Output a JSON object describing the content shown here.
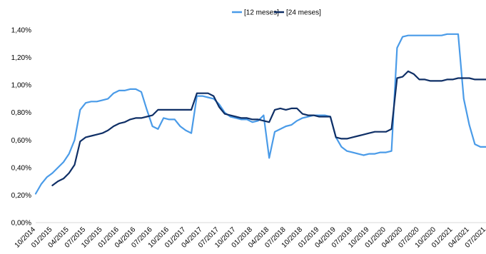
{
  "chart_data": {
    "type": "line",
    "title": "",
    "xlabel": "",
    "ylabel": "",
    "ylim": [
      0,
      1.4
    ],
    "yticks": [
      0,
      0.2,
      0.4,
      0.6,
      0.8,
      1.0,
      1.2,
      1.4
    ],
    "ytick_labels": [
      "0,00%",
      "0,20%",
      "0,40%",
      "0,60%",
      "0,80%",
      "1,00%",
      "1,20%",
      "1,40%"
    ],
    "xlim": [
      "2014-10",
      "2021-07"
    ],
    "xtick_labels": [
      "10/2014",
      "01/2015",
      "04/2015",
      "07/2015",
      "10/2015",
      "01/2016",
      "04/2016",
      "07/2016",
      "10/2016",
      "01/2017",
      "04/2017",
      "07/2017",
      "10/2017",
      "01/2018",
      "04/2018",
      "07/2018",
      "10/2018",
      "01/2019",
      "04/2019",
      "07/2019",
      "10/2019",
      "01/2020",
      "04/2020",
      "07/2020",
      "10/2020",
      "01/2021",
      "04/2021",
      "07/2021"
    ],
    "grid": false,
    "legend_position": "top",
    "series": [
      {
        "name": "[12 meses]",
        "color": "#4a9be8",
        "points": [
          [
            "2014-10",
            0.21
          ],
          [
            "2014-11",
            0.28
          ],
          [
            "2014-12",
            0.33
          ],
          [
            "2015-01",
            0.36
          ],
          [
            "2015-02",
            0.4
          ],
          [
            "2015-03",
            0.44
          ],
          [
            "2015-04",
            0.5
          ],
          [
            "2015-05",
            0.6
          ],
          [
            "2015-06",
            0.82
          ],
          [
            "2015-07",
            0.87
          ],
          [
            "2015-08",
            0.88
          ],
          [
            "2015-09",
            0.88
          ],
          [
            "2015-10",
            0.89
          ],
          [
            "2015-11",
            0.9
          ],
          [
            "2015-12",
            0.94
          ],
          [
            "2016-01",
            0.96
          ],
          [
            "2016-02",
            0.96
          ],
          [
            "2016-03",
            0.97
          ],
          [
            "2016-04",
            0.97
          ],
          [
            "2016-05",
            0.95
          ],
          [
            "2016-06",
            0.82
          ],
          [
            "2016-07",
            0.7
          ],
          [
            "2016-08",
            0.68
          ],
          [
            "2016-09",
            0.76
          ],
          [
            "2016-10",
            0.75
          ],
          [
            "2016-11",
            0.75
          ],
          [
            "2016-12",
            0.7
          ],
          [
            "2017-01",
            0.67
          ],
          [
            "2017-02",
            0.65
          ],
          [
            "2017-03",
            0.92
          ],
          [
            "2017-04",
            0.92
          ],
          [
            "2017-05",
            0.91
          ],
          [
            "2017-06",
            0.9
          ],
          [
            "2017-07",
            0.86
          ],
          [
            "2017-08",
            0.8
          ],
          [
            "2017-09",
            0.77
          ],
          [
            "2017-10",
            0.76
          ],
          [
            "2017-11",
            0.75
          ],
          [
            "2017-12",
            0.75
          ],
          [
            "2018-01",
            0.73
          ],
          [
            "2018-02",
            0.74
          ],
          [
            "2018-03",
            0.78
          ],
          [
            "2018-04",
            0.47
          ],
          [
            "2018-05",
            0.66
          ],
          [
            "2018-06",
            0.68
          ],
          [
            "2018-07",
            0.7
          ],
          [
            "2018-08",
            0.71
          ],
          [
            "2018-09",
            0.74
          ],
          [
            "2018-10",
            0.76
          ],
          [
            "2018-11",
            0.77
          ],
          [
            "2018-12",
            0.78
          ],
          [
            "2019-01",
            0.78
          ],
          [
            "2019-02",
            0.78
          ],
          [
            "2019-03",
            0.77
          ],
          [
            "2019-04",
            0.62
          ],
          [
            "2019-05",
            0.55
          ],
          [
            "2019-06",
            0.52
          ],
          [
            "2019-07",
            0.51
          ],
          [
            "2019-08",
            0.5
          ],
          [
            "2019-09",
            0.49
          ],
          [
            "2019-10",
            0.5
          ],
          [
            "2019-11",
            0.5
          ],
          [
            "2019-12",
            0.51
          ],
          [
            "2020-01",
            0.51
          ],
          [
            "2020-02",
            0.52
          ],
          [
            "2020-03",
            1.27
          ],
          [
            "2020-04",
            1.35
          ],
          [
            "2020-05",
            1.36
          ],
          [
            "2020-06",
            1.36
          ],
          [
            "2020-07",
            1.36
          ],
          [
            "2020-08",
            1.36
          ],
          [
            "2020-09",
            1.36
          ],
          [
            "2020-10",
            1.36
          ],
          [
            "2020-11",
            1.36
          ],
          [
            "2020-12",
            1.37
          ],
          [
            "2021-01",
            1.37
          ],
          [
            "2021-02",
            1.37
          ],
          [
            "2021-03",
            0.9
          ],
          [
            "2021-04",
            0.71
          ],
          [
            "2021-05",
            0.57
          ],
          [
            "2021-06",
            0.55
          ],
          [
            "2021-07",
            0.55
          ]
        ]
      },
      {
        "name": "[24 meses]",
        "color": "#0f2f66",
        "points": [
          [
            "2015-01",
            0.27
          ],
          [
            "2015-02",
            0.3
          ],
          [
            "2015-03",
            0.32
          ],
          [
            "2015-04",
            0.36
          ],
          [
            "2015-05",
            0.42
          ],
          [
            "2015-06",
            0.59
          ],
          [
            "2015-07",
            0.62
          ],
          [
            "2015-08",
            0.63
          ],
          [
            "2015-09",
            0.64
          ],
          [
            "2015-10",
            0.65
          ],
          [
            "2015-11",
            0.67
          ],
          [
            "2015-12",
            0.7
          ],
          [
            "2016-01",
            0.72
          ],
          [
            "2016-02",
            0.73
          ],
          [
            "2016-03",
            0.75
          ],
          [
            "2016-04",
            0.76
          ],
          [
            "2016-05",
            0.76
          ],
          [
            "2016-06",
            0.77
          ],
          [
            "2016-07",
            0.78
          ],
          [
            "2016-08",
            0.82
          ],
          [
            "2016-09",
            0.82
          ],
          [
            "2016-10",
            0.82
          ],
          [
            "2016-11",
            0.82
          ],
          [
            "2016-12",
            0.82
          ],
          [
            "2017-01",
            0.82
          ],
          [
            "2017-02",
            0.82
          ],
          [
            "2017-03",
            0.94
          ],
          [
            "2017-04",
            0.94
          ],
          [
            "2017-05",
            0.94
          ],
          [
            "2017-06",
            0.92
          ],
          [
            "2017-07",
            0.84
          ],
          [
            "2017-08",
            0.79
          ],
          [
            "2017-09",
            0.78
          ],
          [
            "2017-10",
            0.77
          ],
          [
            "2017-11",
            0.76
          ],
          [
            "2017-12",
            0.76
          ],
          [
            "2018-01",
            0.75
          ],
          [
            "2018-02",
            0.75
          ],
          [
            "2018-03",
            0.74
          ],
          [
            "2018-04",
            0.73
          ],
          [
            "2018-05",
            0.82
          ],
          [
            "2018-06",
            0.83
          ],
          [
            "2018-07",
            0.82
          ],
          [
            "2018-08",
            0.83
          ],
          [
            "2018-09",
            0.83
          ],
          [
            "2018-10",
            0.79
          ],
          [
            "2018-11",
            0.78
          ],
          [
            "2018-12",
            0.78
          ],
          [
            "2019-01",
            0.77
          ],
          [
            "2019-02",
            0.77
          ],
          [
            "2019-03",
            0.77
          ],
          [
            "2019-04",
            0.62
          ],
          [
            "2019-05",
            0.61
          ],
          [
            "2019-06",
            0.61
          ],
          [
            "2019-07",
            0.62
          ],
          [
            "2019-08",
            0.63
          ],
          [
            "2019-09",
            0.64
          ],
          [
            "2019-10",
            0.65
          ],
          [
            "2019-11",
            0.66
          ],
          [
            "2019-12",
            0.66
          ],
          [
            "2020-01",
            0.66
          ],
          [
            "2020-02",
            0.68
          ],
          [
            "2020-03",
            1.05
          ],
          [
            "2020-04",
            1.06
          ],
          [
            "2020-05",
            1.1
          ],
          [
            "2020-06",
            1.08
          ],
          [
            "2020-07",
            1.04
          ],
          [
            "2020-08",
            1.04
          ],
          [
            "2020-09",
            1.03
          ],
          [
            "2020-10",
            1.03
          ],
          [
            "2020-11",
            1.03
          ],
          [
            "2020-12",
            1.04
          ],
          [
            "2021-01",
            1.04
          ],
          [
            "2021-02",
            1.05
          ],
          [
            "2021-03",
            1.05
          ],
          [
            "2021-04",
            1.05
          ],
          [
            "2021-05",
            1.04
          ],
          [
            "2021-06",
            1.04
          ],
          [
            "2021-07",
            1.04
          ]
        ]
      }
    ]
  }
}
